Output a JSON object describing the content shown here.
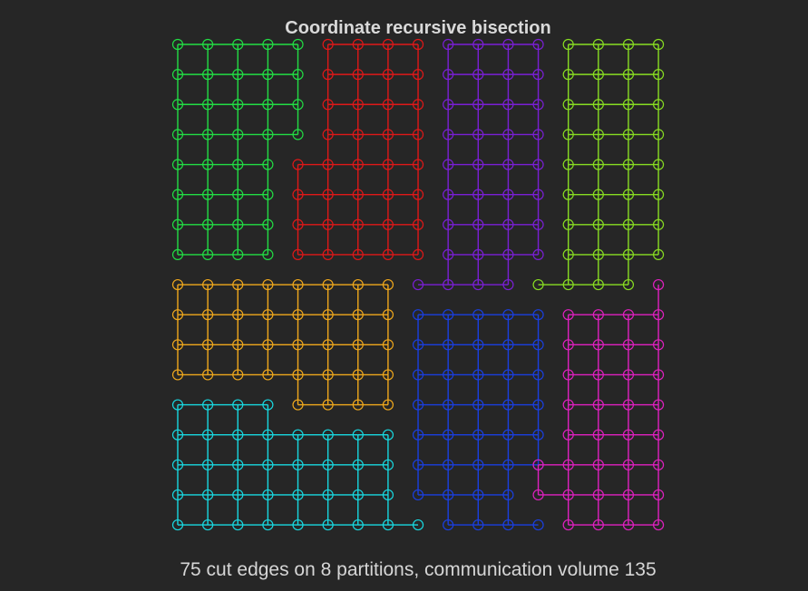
{
  "title": "Coordinate recursive bisection",
  "caption": "75 cut edges on 8 partitions, communication volume 135",
  "partitions": [
    {
      "id": "green",
      "color": "#22dd44",
      "nodes": "0,0-4;1,0-4;2,0-4;3,0-4;4,0-3;5,0-3;6,0-3;7,0-3"
    },
    {
      "id": "red",
      "color": "#e01818",
      "nodes": "0,5-8;1,5-8;2,5-8;3,5-8;4,4-8;5,4-8;6,4-8;7,4-8"
    },
    {
      "id": "purple",
      "color": "#7a1fd6",
      "nodes": "0,9-12;1,9-12;2,9-12;3,9-12;4,9-12;5,9-12;6,9-12;7,9-12;8,8-11"
    },
    {
      "id": "lime",
      "color": "#88dd22",
      "nodes": "0,13-16;1,13-16;2,13-16;3,13-16;4,13-16;5,13-16;6,13-16;7,13-16;8,12-15"
    },
    {
      "id": "orange",
      "color": "#f0a81c",
      "nodes": "8,0-7;9,0-7;10,0-7;11,0-7;12,4-7"
    },
    {
      "id": "blue",
      "color": "#1a3fe0",
      "nodes": "9,8-12;10,8-12;11,8-12;12,8-12;13,8-12;14,8-12;15,8-11;16,9-12"
    },
    {
      "id": "magenta",
      "color": "#e020c0",
      "nodes": "8,16;9,13-16;10,13-16;11,13-16;12,13-16;13,13-16;14,12-16;15,12-16;16,13-16"
    },
    {
      "id": "cyan",
      "color": "#18d8e0",
      "nodes": "12,0-3;13,0-7;14,0-7;15,0-7;16,0-8"
    }
  ]
}
